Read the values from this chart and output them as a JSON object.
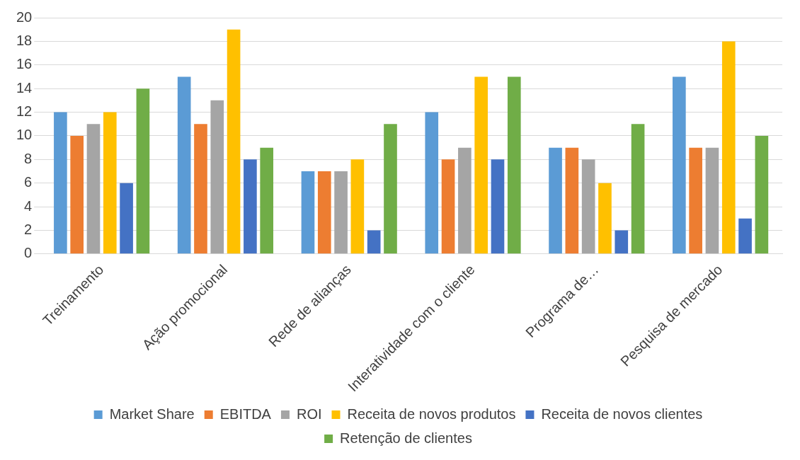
{
  "chart_data": {
    "type": "bar",
    "categories": [
      "Treinamento",
      "Ação promocional",
      "Rede de alianças",
      "Interatividade com o cliente",
      "Programa de…",
      "Pesquisa de mercado"
    ],
    "series": [
      {
        "name": "Market Share",
        "color": "#5b9bd5",
        "values": [
          12,
          15,
          7,
          12,
          9,
          15
        ]
      },
      {
        "name": "EBITDA",
        "color": "#ed7d31",
        "values": [
          10,
          11,
          7,
          8,
          9,
          9
        ]
      },
      {
        "name": "ROI",
        "color": "#a5a5a5",
        "values": [
          11,
          13,
          7,
          9,
          8,
          9
        ]
      },
      {
        "name": "Receita de novos produtos",
        "color": "#ffc000",
        "values": [
          12,
          19,
          8,
          15,
          6,
          18
        ]
      },
      {
        "name": "Receita de novos clientes",
        "color": "#4472c4",
        "values": [
          6,
          8,
          2,
          8,
          2,
          3
        ]
      },
      {
        "name": "Retenção de clientes",
        "color": "#70ad47",
        "values": [
          14,
          9,
          11,
          15,
          11,
          10
        ]
      }
    ],
    "ylim": [
      0,
      20
    ],
    "yticks": [
      0,
      2,
      4,
      6,
      8,
      10,
      12,
      14,
      16,
      18,
      20
    ],
    "grid": "y",
    "legend": "bottom"
  }
}
